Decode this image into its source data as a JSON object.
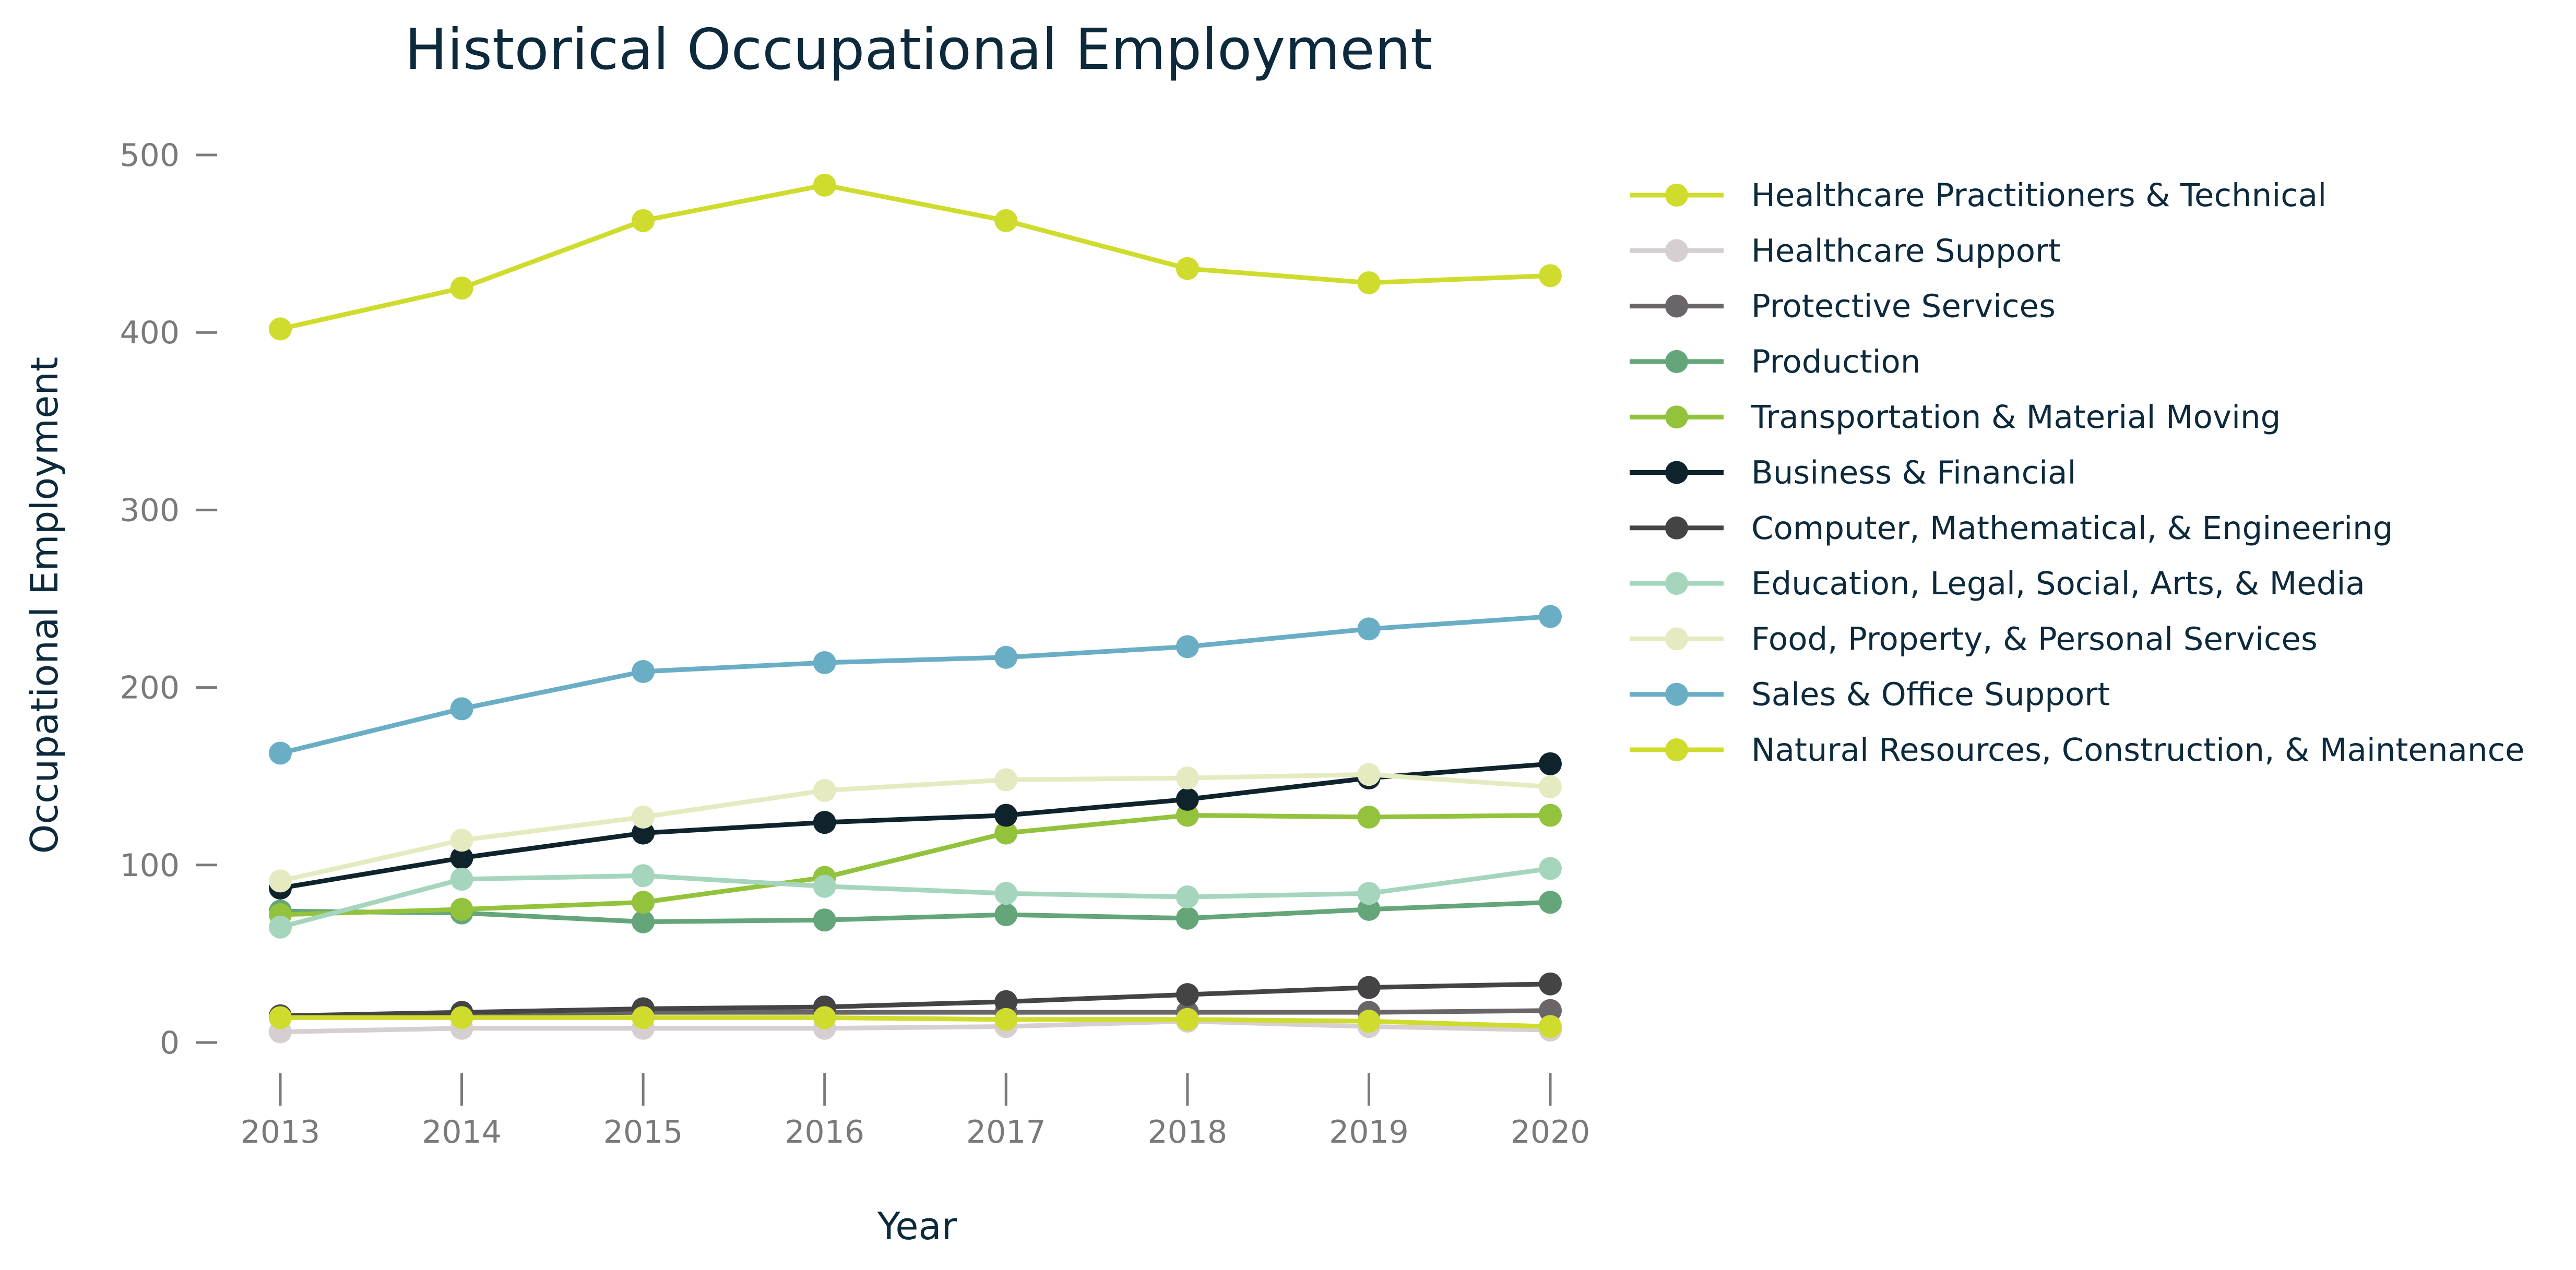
{
  "chart_data": {
    "type": "line",
    "title": "Historical Occupational Employment",
    "xlabel": "Year",
    "ylabel": "Occupational Employment",
    "x": [
      "2013",
      "2014",
      "2015",
      "2016",
      "2017",
      "2018",
      "2019",
      "2020"
    ],
    "yticks": [
      0,
      100,
      200,
      300,
      400,
      500
    ],
    "ylim": [
      0,
      500
    ],
    "grid": false,
    "legend_position": "right",
    "series": [
      {
        "name": "Healthcare Practitioners & Technical",
        "color": "#cfdc2e",
        "values": [
          402,
          425,
          463,
          483,
          463,
          436,
          428,
          432
        ]
      },
      {
        "name": "Healthcare Support",
        "color": "#d6cfd1",
        "values": [
          6,
          8,
          8,
          8,
          9,
          12,
          9,
          7
        ]
      },
      {
        "name": "Protective Services",
        "color": "#6a6568",
        "values": [
          15,
          16,
          17,
          17,
          17,
          17,
          17,
          18
        ]
      },
      {
        "name": "Production",
        "color": "#65a57a",
        "values": [
          74,
          73,
          68,
          69,
          72,
          70,
          75,
          79
        ]
      },
      {
        "name": "Transportation & Material Moving",
        "color": "#93c23d",
        "values": [
          72,
          75,
          79,
          93,
          118,
          128,
          127,
          128
        ]
      },
      {
        "name": "Business & Financial",
        "color": "#0f232c",
        "values": [
          87,
          104,
          118,
          124,
          128,
          137,
          149,
          157
        ]
      },
      {
        "name": "Computer, Mathematical, & Engineering",
        "color": "#444444",
        "values": [
          15,
          17,
          19,
          20,
          23,
          27,
          31,
          33
        ]
      },
      {
        "name": "Education, Legal, Social, Arts, & Media",
        "color": "#a5d6bd",
        "values": [
          65,
          92,
          94,
          88,
          84,
          82,
          84,
          98
        ]
      },
      {
        "name": "Food, Property, & Personal Services",
        "color": "#e6eac1",
        "values": [
          91,
          114,
          127,
          142,
          148,
          149,
          151,
          144
        ]
      },
      {
        "name": "Sales & Office Support",
        "color": "#6aaec6",
        "values": [
          163,
          188,
          209,
          214,
          217,
          223,
          233,
          240
        ]
      },
      {
        "name": "Natural Resources, Construction, & Maintenance",
        "color": "#cfdc2e",
        "values": [
          14,
          14,
          14,
          14,
          13,
          13,
          12,
          9
        ]
      }
    ]
  }
}
